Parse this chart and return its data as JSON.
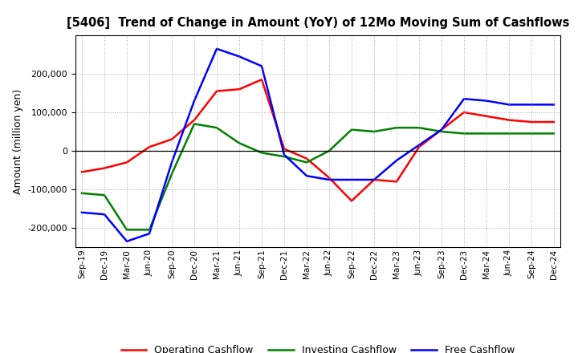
{
  "title": "[5406]  Trend of Change in Amount (YoY) of 12Mo Moving Sum of Cashflows",
  "ylabel": "Amount (million yen)",
  "x_labels": [
    "Sep-19",
    "Dec-19",
    "Mar-20",
    "Jun-20",
    "Sep-20",
    "Dec-20",
    "Mar-21",
    "Jun-21",
    "Sep-21",
    "Dec-21",
    "Mar-22",
    "Jun-22",
    "Sep-22",
    "Dec-22",
    "Mar-23",
    "Jun-23",
    "Sep-23",
    "Dec-23",
    "Mar-24",
    "Jun-24",
    "Sep-24",
    "Dec-24"
  ],
  "operating_cashflow": [
    -55000,
    -45000,
    -30000,
    10000,
    30000,
    80000,
    155000,
    160000,
    185000,
    5000,
    -20000,
    -70000,
    -130000,
    -75000,
    -80000,
    10000,
    55000,
    100000,
    90000,
    80000,
    75000,
    75000
  ],
  "investing_cashflow": [
    -110000,
    -115000,
    -205000,
    -205000,
    -60000,
    70000,
    60000,
    20000,
    -5000,
    -15000,
    -30000,
    0,
    55000,
    50000,
    60000,
    60000,
    50000,
    45000,
    45000,
    45000,
    45000,
    45000
  ],
  "free_cashflow": [
    -160000,
    -165000,
    -235000,
    -215000,
    -30000,
    130000,
    265000,
    245000,
    220000,
    -10000,
    -65000,
    -75000,
    -75000,
    -75000,
    -25000,
    15000,
    55000,
    135000,
    130000,
    120000,
    120000,
    120000
  ],
  "operating_color": "#FF0000",
  "investing_color": "#008000",
  "free_color": "#0000FF",
  "ylim": [
    -250000,
    300000
  ],
  "yticks": [
    -200000,
    -100000,
    0,
    100000,
    200000
  ],
  "background_color": "#FFFFFF",
  "grid_color": "#999999",
  "legend_labels": [
    "Operating Cashflow",
    "Investing Cashflow",
    "Free Cashflow"
  ],
  "linewidth": 1.8
}
